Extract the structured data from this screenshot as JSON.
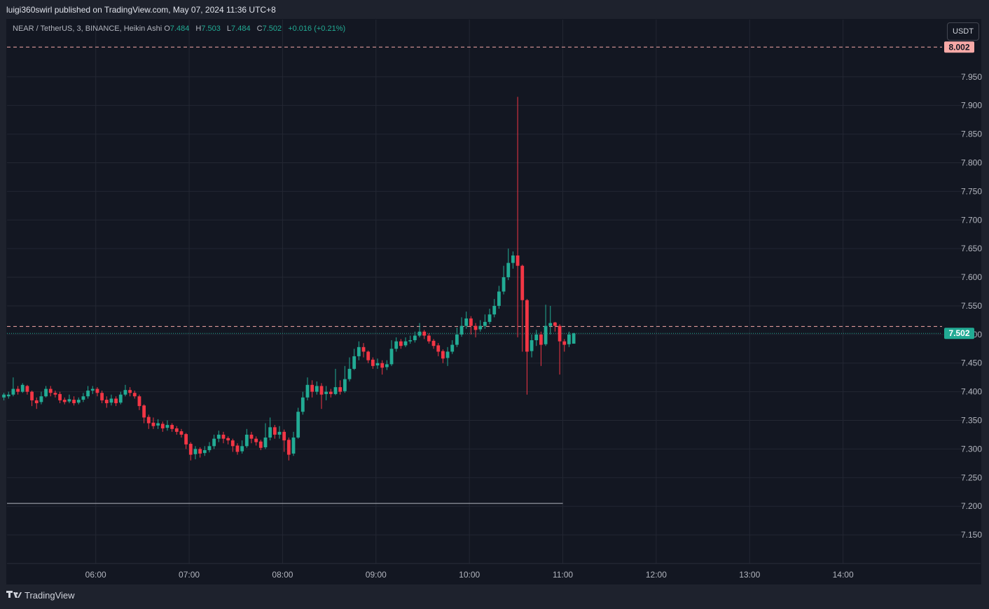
{
  "header": {
    "published": "luigi360swirl published on TradingView.com, May 07, 2024 11:36 UTC+8"
  },
  "legend": {
    "symbol": "NEAR / TetherUS, 3, BINANCE, Heikin Ashi",
    "o_label": "O",
    "o": "7.484",
    "h_label": "H",
    "h": "7.503",
    "l_label": "L",
    "l": "7.484",
    "c_label": "C",
    "c": "7.502",
    "change": "+0.016 (+0.21%)"
  },
  "currency_button": "USDT",
  "footer": {
    "brand": "TradingView",
    "logo_icon": "tradingview-logo-icon"
  },
  "colors": {
    "up": "#22ab94",
    "down": "#f23645",
    "background": "#131722",
    "upper_line": "#f7a9a7"
  },
  "chart_data": {
    "type": "candlestick",
    "style": "Heikin Ashi",
    "ylim": [
      7.1,
      8.05
    ],
    "y_ticks": [
      "7.150",
      "7.200",
      "7.250",
      "7.300",
      "7.350",
      "7.400",
      "7.450",
      "7.500",
      "7.550",
      "7.600",
      "7.650",
      "7.700",
      "7.750",
      "7.800",
      "7.850",
      "7.900",
      "7.950"
    ],
    "x_ticks": [
      {
        "t": 6.0,
        "label": "06:00"
      },
      {
        "t": 7.0,
        "label": "07:00"
      },
      {
        "t": 8.0,
        "label": "08:00"
      },
      {
        "t": 9.0,
        "label": "09:00"
      },
      {
        "t": 10.0,
        "label": "10:00"
      },
      {
        "t": 11.0,
        "label": "11:00"
      },
      {
        "t": 12.0,
        "label": "12:00"
      },
      {
        "t": 13.0,
        "label": "13:00"
      },
      {
        "t": 14.0,
        "label": "14:00"
      }
    ],
    "xlim": [
      5.05,
      15.06
    ],
    "candle_start_hour": 5.0167,
    "candle_step_hours": 0.05,
    "candles": [
      [
        7.39,
        7.395,
        7.398,
        7.385
      ],
      [
        7.392,
        7.395,
        7.4,
        7.388
      ],
      [
        7.395,
        7.405,
        7.425,
        7.392
      ],
      [
        7.405,
        7.4,
        7.41,
        7.395
      ],
      [
        7.4,
        7.412,
        7.415,
        7.398
      ],
      [
        7.41,
        7.4,
        7.412,
        7.395
      ],
      [
        7.4,
        7.385,
        7.402,
        7.375
      ],
      [
        7.385,
        7.38,
        7.39,
        7.37
      ],
      [
        7.382,
        7.392,
        7.4,
        7.378
      ],
      [
        7.392,
        7.405,
        7.41,
        7.39
      ],
      [
        7.405,
        7.398,
        7.41,
        7.392
      ],
      [
        7.398,
        7.395,
        7.402,
        7.39
      ],
      [
        7.396,
        7.385,
        7.4,
        7.38
      ],
      [
        7.386,
        7.382,
        7.39,
        7.378
      ],
      [
        7.383,
        7.387,
        7.395,
        7.38
      ],
      [
        7.386,
        7.38,
        7.392,
        7.376
      ],
      [
        7.381,
        7.386,
        7.39,
        7.378
      ],
      [
        7.386,
        7.392,
        7.398,
        7.382
      ],
      [
        7.392,
        7.402,
        7.41,
        7.388
      ],
      [
        7.402,
        7.405,
        7.41,
        7.396
      ],
      [
        7.405,
        7.398,
        7.408,
        7.392
      ],
      [
        7.398,
        7.385,
        7.402,
        7.38
      ],
      [
        7.386,
        7.38,
        7.392,
        7.372
      ],
      [
        7.381,
        7.388,
        7.395,
        7.376
      ],
      [
        7.388,
        7.38,
        7.392,
        7.375
      ],
      [
        7.381,
        7.395,
        7.4,
        7.378
      ],
      [
        7.395,
        7.403,
        7.412,
        7.392
      ],
      [
        7.403,
        7.398,
        7.408,
        7.392
      ],
      [
        7.398,
        7.392,
        7.402,
        7.388
      ],
      [
        7.392,
        7.375,
        7.395,
        7.368
      ],
      [
        7.376,
        7.355,
        7.378,
        7.345
      ],
      [
        7.356,
        7.345,
        7.36,
        7.335
      ],
      [
        7.346,
        7.34,
        7.355,
        7.335
      ],
      [
        7.341,
        7.345,
        7.352,
        7.335
      ],
      [
        7.344,
        7.336,
        7.348,
        7.33
      ],
      [
        7.337,
        7.342,
        7.35,
        7.332
      ],
      [
        7.342,
        7.335,
        7.345,
        7.33
      ],
      [
        7.336,
        7.33,
        7.34,
        7.325
      ],
      [
        7.331,
        7.325,
        7.335,
        7.32
      ],
      [
        7.326,
        7.308,
        7.328,
        7.3
      ],
      [
        7.309,
        7.29,
        7.312,
        7.28
      ],
      [
        7.291,
        7.3,
        7.305,
        7.282
      ],
      [
        7.3,
        7.292,
        7.303,
        7.285
      ],
      [
        7.293,
        7.298,
        7.305,
        7.288
      ],
      [
        7.298,
        7.305,
        7.312,
        7.294
      ],
      [
        7.305,
        7.318,
        7.325,
        7.3
      ],
      [
        7.318,
        7.325,
        7.332,
        7.312
      ],
      [
        7.325,
        7.318,
        7.33,
        7.31
      ],
      [
        7.319,
        7.315,
        7.322,
        7.308
      ],
      [
        7.315,
        7.305,
        7.318,
        7.295
      ],
      [
        7.306,
        7.295,
        7.31,
        7.29
      ],
      [
        7.296,
        7.305,
        7.315,
        7.292
      ],
      [
        7.305,
        7.325,
        7.335,
        7.302
      ],
      [
        7.325,
        7.318,
        7.33,
        7.31
      ],
      [
        7.318,
        7.312,
        7.322,
        7.306
      ],
      [
        7.313,
        7.302,
        7.316,
        7.298
      ],
      [
        7.303,
        7.32,
        7.345,
        7.3
      ],
      [
        7.32,
        7.338,
        7.355,
        7.315
      ],
      [
        7.338,
        7.325,
        7.342,
        7.318
      ],
      [
        7.325,
        7.33,
        7.34,
        7.318
      ],
      [
        7.33,
        7.315,
        7.334,
        7.295
      ],
      [
        7.316,
        7.29,
        7.32,
        7.28
      ],
      [
        7.292,
        7.32,
        7.33,
        7.288
      ],
      [
        7.32,
        7.365,
        7.372,
        7.318
      ],
      [
        7.365,
        7.39,
        7.4,
        7.36
      ],
      [
        7.39,
        7.412,
        7.425,
        7.385
      ],
      [
        7.412,
        7.4,
        7.42,
        7.39
      ],
      [
        7.4,
        7.41,
        7.418,
        7.395
      ],
      [
        7.41,
        7.395,
        7.415,
        7.37
      ],
      [
        7.396,
        7.4,
        7.41,
        7.385
      ],
      [
        7.4,
        7.396,
        7.405,
        7.39
      ],
      [
        7.396,
        7.408,
        7.44,
        7.394
      ],
      [
        7.408,
        7.4,
        7.42,
        7.395
      ],
      [
        7.401,
        7.422,
        7.445,
        7.398
      ],
      [
        7.422,
        7.44,
        7.46,
        7.418
      ],
      [
        7.44,
        7.462,
        7.475,
        7.438
      ],
      [
        7.462,
        7.478,
        7.488,
        7.455
      ],
      [
        7.478,
        7.47,
        7.485,
        7.46
      ],
      [
        7.47,
        7.455,
        7.472,
        7.45
      ],
      [
        7.456,
        7.445,
        7.46,
        7.44
      ],
      [
        7.446,
        7.45,
        7.458,
        7.44
      ],
      [
        7.45,
        7.442,
        7.455,
        7.43
      ],
      [
        7.443,
        7.448,
        7.455,
        7.438
      ],
      [
        7.448,
        7.475,
        7.49,
        7.445
      ],
      [
        7.475,
        7.488,
        7.495,
        7.47
      ],
      [
        7.488,
        7.48,
        7.492,
        7.475
      ],
      [
        7.481,
        7.488,
        7.495,
        7.478
      ],
      [
        7.488,
        7.49,
        7.498,
        7.484
      ],
      [
        7.49,
        7.498,
        7.505,
        7.486
      ],
      [
        7.498,
        7.505,
        7.52,
        7.495
      ],
      [
        7.505,
        7.498,
        7.508,
        7.492
      ],
      [
        7.498,
        7.488,
        7.502,
        7.484
      ],
      [
        7.489,
        7.48,
        7.492,
        7.475
      ],
      [
        7.481,
        7.47,
        7.485,
        7.462
      ],
      [
        7.471,
        7.458,
        7.474,
        7.45
      ],
      [
        7.459,
        7.47,
        7.478,
        7.445
      ],
      [
        7.47,
        7.482,
        7.49,
        7.466
      ],
      [
        7.482,
        7.5,
        7.512,
        7.478
      ],
      [
        7.5,
        7.515,
        7.53,
        7.496
      ],
      [
        7.515,
        7.528,
        7.54,
        7.51
      ],
      [
        7.528,
        7.515,
        7.532,
        7.5
      ],
      [
        7.515,
        7.508,
        7.52,
        7.495
      ],
      [
        7.509,
        7.515,
        7.525,
        7.505
      ],
      [
        7.515,
        7.522,
        7.535,
        7.51
      ],
      [
        7.522,
        7.535,
        7.545,
        7.518
      ],
      [
        7.535,
        7.55,
        7.562,
        7.53
      ],
      [
        7.55,
        7.575,
        7.585,
        7.545
      ],
      [
        7.575,
        7.6,
        7.62,
        7.57
      ],
      [
        7.6,
        7.625,
        7.65,
        7.595
      ],
      [
        7.625,
        7.638,
        7.645,
        7.615
      ],
      [
        7.638,
        7.62,
        7.915,
        7.495
      ],
      [
        7.62,
        7.56,
        7.622,
        7.47
      ],
      [
        7.56,
        7.47,
        7.562,
        7.395
      ],
      [
        7.471,
        7.49,
        7.5,
        7.46
      ],
      [
        7.49,
        7.5,
        7.508,
        7.48
      ],
      [
        7.5,
        7.482,
        7.505,
        7.445
      ],
      [
        7.483,
        7.515,
        7.552,
        7.48
      ],
      [
        7.515,
        7.52,
        7.55,
        7.5
      ],
      [
        7.521,
        7.515,
        7.522,
        7.505
      ],
      [
        7.515,
        7.488,
        7.518,
        7.43
      ],
      [
        7.488,
        7.482,
        7.492,
        7.47
      ],
      [
        7.483,
        7.5,
        7.505,
        7.478
      ],
      [
        7.484,
        7.502,
        7.503,
        7.484
      ]
    ],
    "horizontal_lines": [
      {
        "value": 8.002,
        "style": "dashed",
        "color": "#f7a9a7",
        "label": "8.002",
        "label_bg": "#f7a9a7",
        "label_color": "#131722",
        "end_hour": 15.06
      },
      {
        "value": 7.514,
        "style": "dashed",
        "color": "#f7a9a7",
        "end_hour": 15.06
      },
      {
        "value": 7.502,
        "style": "dotted",
        "color": "#22ab94",
        "label": "7.502",
        "label_bg": "#22ab94",
        "label_color": "#ffffff",
        "end_hour": 15.06
      },
      {
        "value": 7.205,
        "style": "solid",
        "color": "#b2b5be",
        "end_hour": 11.0
      }
    ]
  }
}
